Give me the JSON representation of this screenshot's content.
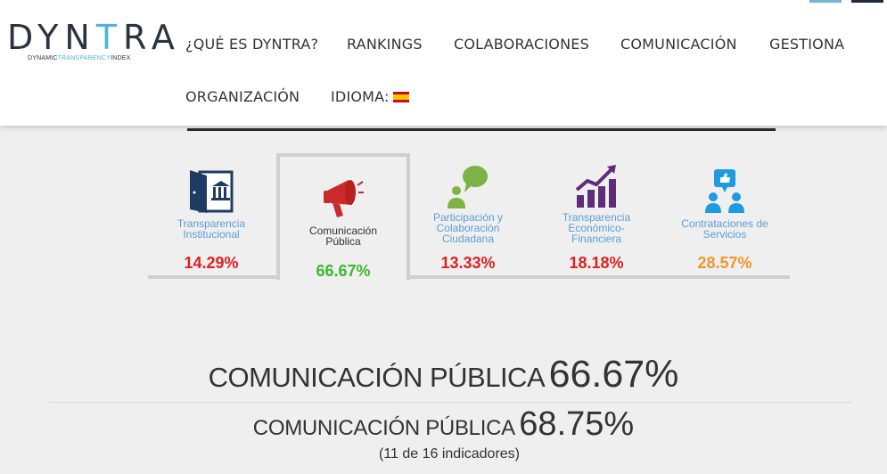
{
  "logo": {
    "word_a": "DYN",
    "word_accent": "T",
    "word_b": "RA",
    "sub_a": "DYNAMIC",
    "sub_accent": "TRANSPARENCY",
    "sub_b": "INDEX"
  },
  "nav": {
    "items": [
      "¿QUÉ ES DYNTRA?",
      "RANKINGS",
      "COLABORACIONES",
      "COMUNICACIÓN",
      "GESTIONA",
      "ORGANIZACIÓN"
    ],
    "language_label": "IDIOMA:"
  },
  "tabs": [
    {
      "label": "Transparencia\nInstitucional",
      "value": "14.29%",
      "color": "#e02020",
      "icon": "door-bank-icon"
    },
    {
      "label": "Comunicación\nPública",
      "value": "66.67%",
      "color": "#3db82e",
      "icon": "megaphone-icon"
    },
    {
      "label": "Participación y\nColaboración\nCiudadana",
      "value": "13.33%",
      "color": "#e02020",
      "icon": "speech-person-icon"
    },
    {
      "label": "Transparencia\nEconómico-\nFinanciera",
      "value": "18.18%",
      "color": "#e02020",
      "icon": "growth-chart-icon"
    },
    {
      "label": "Contrataciones de\nServicios",
      "value": "28.57%",
      "color": "#f0962e",
      "icon": "thumbs-up-people-icon"
    }
  ],
  "headline": {
    "title": "COMUNICACIÓN PÚBLICA",
    "value": "66.67%"
  },
  "subheadline": {
    "title": "COMUNICACIÓN PÚBLICA",
    "value": "68.75%",
    "note": "(11 de 16 indicadores)"
  }
}
